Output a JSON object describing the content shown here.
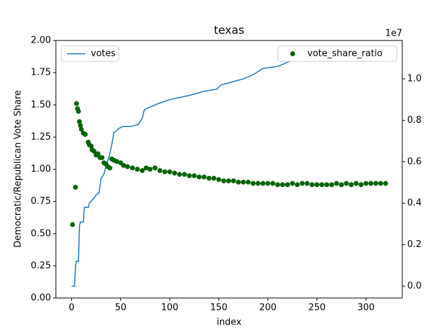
{
  "chart_data": {
    "type": "line",
    "title": "texas",
    "x_label": "index",
    "y_label": "Democratic/Republican Vote Share",
    "y2_offset_label": "1e7",
    "xlim": [
      -16,
      337
    ],
    "xticks": [
      0,
      50,
      100,
      150,
      200,
      250,
      300
    ],
    "ylim": [
      0,
      2
    ],
    "yticks": [
      {
        "value": 0,
        "label": "0.00"
      },
      {
        "value": 0.25,
        "label": "0.25"
      },
      {
        "value": 0.5,
        "label": "0.50"
      },
      {
        "value": 0.75,
        "label": "0.75"
      },
      {
        "value": 1,
        "label": "1.00"
      },
      {
        "value": 1.25,
        "label": "1.25"
      },
      {
        "value": 1.5,
        "label": "1.50"
      },
      {
        "value": 1.75,
        "label": "1.75"
      },
      {
        "value": 2,
        "label": "2.00"
      }
    ],
    "y2lim": [
      -0.057,
      1.185
    ],
    "y2ticks": [
      {
        "value": 0,
        "label": "0.0"
      },
      {
        "value": 0.2,
        "label": "0.2"
      },
      {
        "value": 0.4,
        "label": "0.4"
      },
      {
        "value": 0.6,
        "label": "0.6"
      },
      {
        "value": 0.8,
        "label": "0.8"
      },
      {
        "value": 1,
        "label": "1.0"
      }
    ],
    "series": [
      {
        "name": "votes",
        "type": "line",
        "axis": "y2",
        "color": "#1f77b4",
        "legend": "upper left",
        "x": [
          0,
          3,
          4,
          5,
          7,
          8,
          9,
          12,
          13,
          17,
          18,
          22,
          25,
          28,
          30,
          33,
          35,
          38,
          40,
          42,
          43,
          46,
          48,
          52,
          60,
          68,
          72,
          74,
          78,
          88,
          100,
          120,
          135,
          148,
          152,
          160,
          175,
          185,
          195,
          210,
          220,
          230,
          250,
          270,
          300,
          320
        ],
        "values": [
          0,
          0,
          0.1,
          0.12,
          0.12,
          0.29,
          0.31,
          0.31,
          0.38,
          0.38,
          0.4,
          0.42,
          0.44,
          0.45,
          0.52,
          0.54,
          0.58,
          0.62,
          0.66,
          0.71,
          0.74,
          0.75,
          0.76,
          0.77,
          0.77,
          0.78,
          0.81,
          0.85,
          0.86,
          0.88,
          0.9,
          0.92,
          0.94,
          0.95,
          0.97,
          0.98,
          1.0,
          1.02,
          1.05,
          1.06,
          1.08,
          1.1,
          1.12,
          1.13,
          1.13,
          1.14
        ]
      },
      {
        "name": "vote_share_ratio",
        "type": "scatter",
        "color": "#006400",
        "legend": "upper right",
        "x": [
          1,
          4,
          5,
          6,
          7,
          8,
          9,
          10,
          12,
          14,
          17,
          18,
          20,
          21,
          23,
          25,
          27,
          29,
          31,
          33,
          35,
          37,
          39,
          41,
          43,
          46,
          50,
          53,
          57,
          62,
          67,
          72,
          76,
          80,
          85,
          90,
          95,
          100,
          105,
          110,
          115,
          120,
          125,
          130,
          135,
          140,
          145,
          150,
          155,
          160,
          165,
          170,
          175,
          180,
          185,
          190,
          195,
          200,
          205,
          210,
          215,
          220,
          225,
          230,
          235,
          240,
          245,
          250,
          255,
          260,
          265,
          270,
          275,
          280,
          285,
          290,
          295,
          300,
          305,
          310,
          315,
          320
        ],
        "values": [
          0.57,
          0.86,
          1.51,
          1.47,
          1.45,
          1.37,
          1.34,
          1.31,
          1.28,
          1.27,
          1.21,
          1.19,
          1.18,
          1.15,
          1.14,
          1.11,
          1.12,
          1.09,
          1.09,
          1.05,
          1.04,
          1.02,
          1.01,
          1.08,
          1.07,
          1.06,
          1.05,
          1.03,
          1.02,
          1.01,
          1.0,
          0.99,
          1.01,
          1.0,
          1.01,
          0.99,
          0.98,
          0.98,
          0.97,
          0.96,
          0.96,
          0.95,
          0.95,
          0.94,
          0.94,
          0.93,
          0.93,
          0.92,
          0.91,
          0.91,
          0.91,
          0.9,
          0.9,
          0.9,
          0.89,
          0.89,
          0.89,
          0.89,
          0.89,
          0.88,
          0.88,
          0.88,
          0.89,
          0.88,
          0.89,
          0.89,
          0.88,
          0.88,
          0.88,
          0.88,
          0.88,
          0.89,
          0.88,
          0.89,
          0.88,
          0.89,
          0.88,
          0.89,
          0.89,
          0.89,
          0.89,
          0.89
        ]
      }
    ]
  }
}
